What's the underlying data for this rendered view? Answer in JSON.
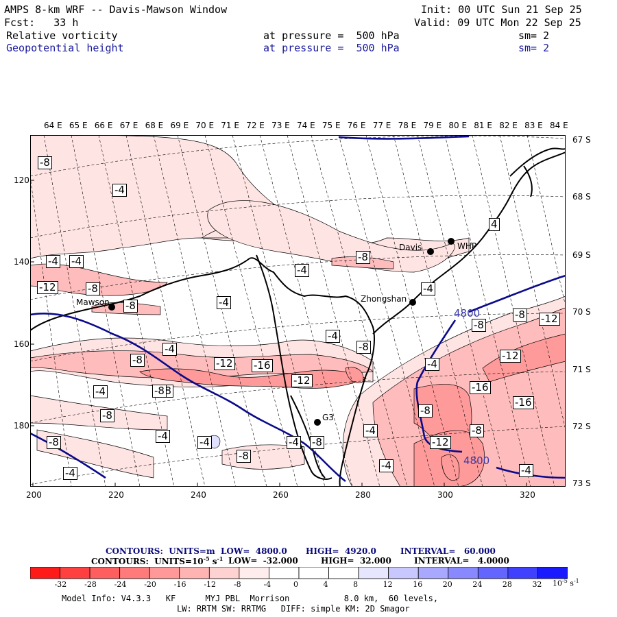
{
  "header": {
    "title": "AMPS 8-km WRF -- Davis-Mawson Window",
    "init": "Init: 00 UTC Sun 21 Sep 25",
    "fcst": "Fcst:   33 h",
    "valid": "Valid: 09 UTC Mon 22 Sep 25",
    "field1_name": "Relative vorticity",
    "field1_level": "at pressure =  500 hPa",
    "field1_sm": "sm= 2",
    "field2_name": "Geopotential height",
    "field2_level": "at pressure =  500 hPa",
    "field2_sm": "sm= 2"
  },
  "top_lon_labels": [
    "64 E",
    "65 E",
    "66 E",
    "67 E",
    "68 E",
    "69 E",
    "70 E",
    "71 E",
    "72 E",
    "73 E",
    "74 E",
    "75 E",
    "76 E",
    "77 E",
    "78 E",
    "79 E",
    "80 E",
    "81 E",
    "82 E",
    "83 E",
    "84 E"
  ],
  "right_lat_labels": [
    "67 S",
    "68 S",
    "69 S",
    "70 S",
    "71 S",
    "72 S",
    "73 S"
  ],
  "left_y_ticks": [
    "120",
    "140",
    "160",
    "180"
  ],
  "bottom_x_ticks": [
    "200",
    "220",
    "240",
    "260",
    "280",
    "300",
    "320"
  ],
  "stations": [
    {
      "name": "Davis",
      "sym": "davis"
    },
    {
      "name": "WHP",
      "sym": "whp"
    },
    {
      "name": "Zhongshan",
      "sym": "zhongshan"
    },
    {
      "name": "Mawson",
      "sym": "mawson"
    },
    {
      "name": "G3",
      "sym": "g3"
    }
  ],
  "contour_labels": [
    "-8",
    "-4",
    "-4",
    "-4",
    "-12",
    "-8",
    "-8",
    "4",
    "-8",
    "-4",
    "-4",
    "-4",
    "-8",
    "-4",
    "-8",
    "-12",
    "-16",
    "-8",
    "-12",
    "-4",
    "-4",
    "-8",
    "-16",
    "-12",
    "-16",
    "-8",
    "-8",
    "-12",
    "-4",
    "-8",
    "-4",
    "-8",
    "-4",
    "-4",
    "-4",
    "-8",
    "-8",
    "-4",
    "-4",
    "-12",
    "-8",
    "-4",
    "-8"
  ],
  "height_labels": [
    "4800",
    "4800"
  ],
  "footer": {
    "line1_contours": "CONTOURS:  UNITS=m  LOW=  4800.0",
    "line1_high": "HIGH=  4920.0",
    "line1_interval": "INTERVAL=   60.000",
    "line2_contours": "CONTOURS:  UNITS=10",
    "line2_exp": "-5",
    "line2_s": " s",
    "line2_sexp": "-1",
    "line2_low": "LOW=  -32.000",
    "line2_high": "HIGH=  32.000",
    "line2_interval": "INTERVAL=   4.0000",
    "model_info": "Model Info: V4.3.3   KF      MYJ PBL  Morrison           8.0 km,  60 levels,",
    "model_info2": "LW: RRTM SW: RRTMG   DIFF: simple KM: 2D Smagor"
  },
  "colorbar": {
    "labels": [
      "-32",
      "-28",
      "-24",
      "-20",
      "-16",
      "-12",
      "-8",
      "-4",
      "0",
      "4",
      "8",
      "12",
      "16",
      "20",
      "24",
      "28",
      "32"
    ],
    "units_base": "10",
    "units_exp": "-5",
    "units_s": " s",
    "units_sexp": "-1",
    "colors": [
      "#ff1a1a",
      "#ff4040",
      "#ff5e5e",
      "#ff7a7a",
      "#ff9898",
      "#ffb4b4",
      "#ffd2d2",
      "#ffecec",
      "#ffffff",
      "#ffffff",
      "#e6e6ff",
      "#c8c8ff",
      "#a8a8ff",
      "#8888ff",
      "#6464ff",
      "#4040ff",
      "#1a1aff"
    ]
  },
  "colors": {
    "height_contour": "#0a0a8c",
    "coast": "#000000",
    "label_blue": "#1a1a9c"
  }
}
